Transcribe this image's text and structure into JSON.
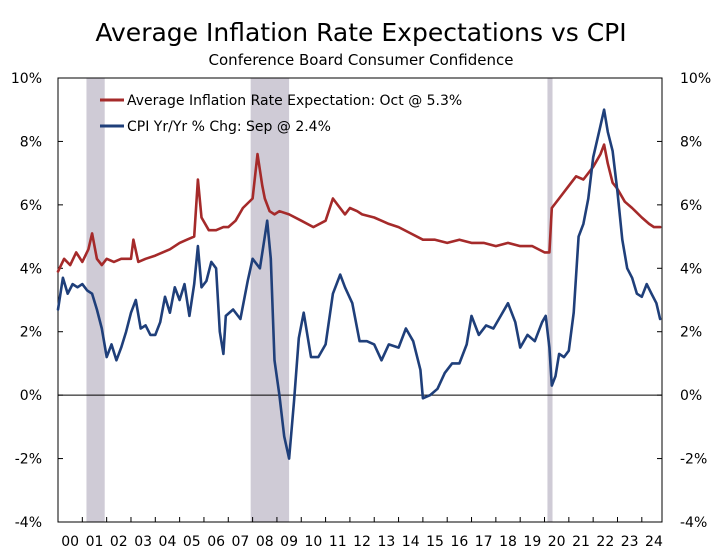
{
  "chart_data": {
    "type": "line",
    "title": "Average Inflation Rate Expectations vs CPI",
    "subtitle": "Conference Board Consumer Confidence",
    "xlabel": "",
    "ylabel": "",
    "xlim": [
      2000.0,
      2024.83
    ],
    "ylim": [
      -4,
      10
    ],
    "y_ticks": [
      -4,
      -2,
      0,
      2,
      4,
      6,
      8,
      10
    ],
    "y_tick_labels": [
      "-4%",
      "-2%",
      "0%",
      "2%",
      "4%",
      "6%",
      "8%",
      "10%"
    ],
    "x_tick_labels": [
      "00",
      "01",
      "02",
      "03",
      "04",
      "05",
      "06",
      "07",
      "08",
      "09",
      "10",
      "11",
      "12",
      "13",
      "14",
      "15",
      "16",
      "17",
      "18",
      "19",
      "20",
      "21",
      "22",
      "23",
      "24"
    ],
    "recessions": [
      [
        2001.17,
        2001.92
      ],
      [
        2007.92,
        2009.5
      ],
      [
        2020.12,
        2020.33
      ]
    ],
    "legend_position": "top-left",
    "series": [
      {
        "name": "Average Inflation Rate Expectation: Oct @ 5.3%",
        "color": "#a52a2a",
        "x": [
          2000.0,
          2000.25,
          2000.5,
          2000.75,
          2001.0,
          2001.25,
          2001.4,
          2001.6,
          2001.8,
          2002.0,
          2002.3,
          2002.6,
          2003.0,
          2003.1,
          2003.3,
          2003.6,
          2004.0,
          2004.3,
          2004.6,
          2005.0,
          2005.3,
          2005.6,
          2005.75,
          2005.9,
          2006.2,
          2006.5,
          2006.8,
          2007.0,
          2007.3,
          2007.6,
          2008.0,
          2008.2,
          2008.4,
          2008.5,
          2008.7,
          2008.9,
          2009.1,
          2009.5,
          2010.0,
          2010.5,
          2011.0,
          2011.3,
          2011.5,
          2011.8,
          2012.0,
          2012.3,
          2012.5,
          2013.0,
          2013.3,
          2013.6,
          2014.0,
          2014.5,
          2015.0,
          2015.5,
          2016.0,
          2016.5,
          2017.0,
          2017.5,
          2018.0,
          2018.5,
          2019.0,
          2019.5,
          2020.0,
          2020.2,
          2020.3,
          2020.6,
          2021.0,
          2021.3,
          2021.6,
          2022.0,
          2022.3,
          2022.45,
          2022.6,
          2022.8,
          2023.0,
          2023.3,
          2023.6,
          2024.0,
          2024.3,
          2024.5,
          2024.75
        ],
        "values": [
          3.9,
          4.3,
          4.1,
          4.5,
          4.2,
          4.6,
          5.1,
          4.3,
          4.1,
          4.3,
          4.2,
          4.3,
          4.3,
          4.9,
          4.2,
          4.3,
          4.4,
          4.5,
          4.6,
          4.8,
          4.9,
          5.0,
          6.8,
          5.6,
          5.2,
          5.2,
          5.3,
          5.3,
          5.5,
          5.9,
          6.2,
          7.6,
          6.6,
          6.2,
          5.8,
          5.7,
          5.8,
          5.7,
          5.5,
          5.3,
          5.5,
          6.2,
          6.0,
          5.7,
          5.9,
          5.8,
          5.7,
          5.6,
          5.5,
          5.4,
          5.3,
          5.1,
          4.9,
          4.9,
          4.8,
          4.9,
          4.8,
          4.8,
          4.7,
          4.8,
          4.7,
          4.7,
          4.5,
          4.5,
          5.9,
          6.2,
          6.6,
          6.9,
          6.8,
          7.2,
          7.6,
          7.9,
          7.3,
          6.7,
          6.5,
          6.1,
          5.9,
          5.6,
          5.4,
          5.3,
          5.3
        ]
      },
      {
        "name": "CPI Yr/Yr % Chg: Sep @ 2.4%",
        "color": "#1f3f7a",
        "x": [
          2000.0,
          2000.2,
          2000.4,
          2000.6,
          2000.8,
          2001.0,
          2001.2,
          2001.4,
          2001.6,
          2001.8,
          2002.0,
          2002.2,
          2002.4,
          2002.6,
          2002.8,
          2003.0,
          2003.2,
          2003.4,
          2003.6,
          2003.8,
          2004.0,
          2004.2,
          2004.4,
          2004.6,
          2004.8,
          2005.0,
          2005.2,
          2005.4,
          2005.6,
          2005.75,
          2005.9,
          2006.1,
          2006.3,
          2006.5,
          2006.65,
          2006.8,
          2006.9,
          2007.2,
          2007.5,
          2007.8,
          2008.0,
          2008.3,
          2008.5,
          2008.6,
          2008.75,
          2008.9,
          2009.1,
          2009.3,
          2009.5,
          2009.7,
          2009.9,
          2010.1,
          2010.4,
          2010.7,
          2011.0,
          2011.3,
          2011.6,
          2011.8,
          2012.1,
          2012.4,
          2012.7,
          2013.0,
          2013.3,
          2013.6,
          2014.0,
          2014.3,
          2014.6,
          2014.9,
          2015.0,
          2015.3,
          2015.6,
          2015.9,
          2016.2,
          2016.5,
          2016.8,
          2017.0,
          2017.3,
          2017.6,
          2017.9,
          2018.2,
          2018.5,
          2018.8,
          2019.0,
          2019.3,
          2019.6,
          2019.9,
          2020.05,
          2020.2,
          2020.3,
          2020.45,
          2020.6,
          2020.8,
          2021.0,
          2021.2,
          2021.4,
          2021.6,
          2021.8,
          2022.0,
          2022.3,
          2022.45,
          2022.6,
          2022.8,
          2023.0,
          2023.2,
          2023.4,
          2023.6,
          2023.8,
          2024.0,
          2024.2,
          2024.4,
          2024.6,
          2024.75
        ],
        "values": [
          2.7,
          3.7,
          3.2,
          3.5,
          3.4,
          3.5,
          3.3,
          3.2,
          2.7,
          2.1,
          1.2,
          1.6,
          1.1,
          1.5,
          2.0,
          2.6,
          3.0,
          2.1,
          2.2,
          1.9,
          1.9,
          2.3,
          3.1,
          2.6,
          3.4,
          3.0,
          3.5,
          2.5,
          3.5,
          4.7,
          3.4,
          3.6,
          4.2,
          4.0,
          2.0,
          1.3,
          2.5,
          2.7,
          2.4,
          3.6,
          4.3,
          4.0,
          5.0,
          5.5,
          4.3,
          1.1,
          0.0,
          -1.3,
          -2.0,
          -0.2,
          1.8,
          2.6,
          1.2,
          1.2,
          1.6,
          3.2,
          3.8,
          3.4,
          2.9,
          1.7,
          1.7,
          1.6,
          1.1,
          1.6,
          1.5,
          2.1,
          1.7,
          0.8,
          -0.1,
          0.0,
          0.2,
          0.7,
          1.0,
          1.0,
          1.6,
          2.5,
          1.9,
          2.2,
          2.1,
          2.5,
          2.9,
          2.3,
          1.5,
          1.9,
          1.7,
          2.3,
          2.5,
          1.5,
          0.3,
          0.6,
          1.3,
          1.2,
          1.4,
          2.6,
          5.0,
          5.4,
          6.2,
          7.5,
          8.5,
          9.0,
          8.3,
          7.7,
          6.4,
          4.9,
          4.0,
          3.7,
          3.2,
          3.1,
          3.5,
          3.2,
          2.9,
          2.4
        ]
      }
    ]
  }
}
